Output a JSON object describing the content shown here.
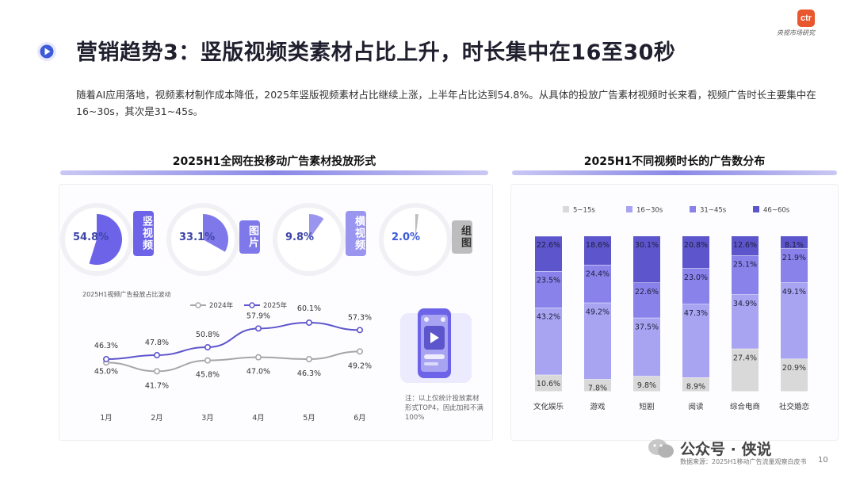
{
  "brand": {
    "logo_text": "ctr",
    "subtitle": "央视市场研究"
  },
  "page_title": "营销趋势3：竖版视频类素材占比上升，时长集中在16至30秒",
  "description": "随着AI应用落地，视频素材制作成本降低，2025年竖版视频素材占比继续上涨，上半年占比达到54.8%。从具体的投放广告素材视频时长来看，视频广告时长主要集中在16~30s，其次是31~45s。",
  "left_section": {
    "title": "2025H1全网在投移动广告素材投放形式"
  },
  "right_section": {
    "title": "2025H1不同视频时长的广告数分布"
  },
  "colors": {
    "accent": "#6c63e8",
    "dark_purple": "#5b52c9",
    "mid_purple": "#8e88ee",
    "light_purple": "#b4b0f4",
    "gray": "#d9d9d9",
    "line_2024": "#a6a6a6",
    "line_2025": "#5d55cc"
  },
  "pies": [
    {
      "pct_label": "54.8%",
      "value": 54.8,
      "tag": "竖视频",
      "color": "#6c63e8"
    },
    {
      "pct_label": "33.1%",
      "value": 33.1,
      "tag": "图片",
      "color": "#7f78ea"
    },
    {
      "pct_label": "9.8%",
      "value": 9.8,
      "tag": "横视频",
      "color": "#9a95ef"
    },
    {
      "pct_label": "2.0%",
      "value": 2.0,
      "tag": "组图",
      "color": "#bdbdbd"
    }
  ],
  "line_chart_title": "2025H1视频广告投放占比波动",
  "note_text": "注：以上仅统计投放素材形式TOP4，因此加和不满100%",
  "source_text": "数据来源：2025H1移动广告流量观察白皮书",
  "page_number": "10",
  "watermark_text": "公众号 · 侠说",
  "chart_data": [
    {
      "type": "line",
      "title": "2025H1视频广告投放占比波动",
      "categories": [
        "1月",
        "2月",
        "3月",
        "4月",
        "5月",
        "6月"
      ],
      "series": [
        {
          "name": "2024年",
          "values": [
            45.0,
            41.7,
            45.8,
            47.0,
            46.3,
            49.2
          ],
          "labels": [
            "45.0%",
            "41.7%",
            "45.8%",
            "47.0%",
            "46.3%",
            "49.2%"
          ]
        },
        {
          "name": "2025年",
          "values": [
            46.3,
            47.8,
            50.8,
            57.9,
            60.1,
            57.3
          ],
          "labels": [
            "46.3%",
            "47.8%",
            "50.8%",
            "57.9%",
            "60.1%",
            "57.3%"
          ]
        }
      ],
      "ylim": [
        35,
        65
      ],
      "legend": "top"
    },
    {
      "type": "bar",
      "stacked": true,
      "title": "2025H1不同视频时长的广告数分布",
      "categories": [
        "文化娱乐",
        "游戏",
        "短剧",
        "阅读",
        "综合电商",
        "社交婚恋"
      ],
      "series": [
        {
          "name": "5~15s",
          "values": [
            10.6,
            7.8,
            9.8,
            8.9,
            27.4,
            20.9
          ],
          "color": "#d9d9d9"
        },
        {
          "name": "16~30s",
          "values": [
            43.2,
            49.2,
            37.5,
            47.3,
            34.9,
            49.1
          ],
          "color": "#a9a4f2"
        },
        {
          "name": "31~45s",
          "values": [
            23.5,
            24.4,
            22.6,
            23.0,
            25.1,
            21.9
          ],
          "color": "#8882ea"
        },
        {
          "name": "46~60s",
          "values": [
            22.6,
            18.6,
            30.1,
            20.8,
            12.6,
            8.1
          ],
          "color": "#5d55cc"
        }
      ],
      "ylim": [
        0,
        100
      ],
      "legend": "top"
    }
  ]
}
